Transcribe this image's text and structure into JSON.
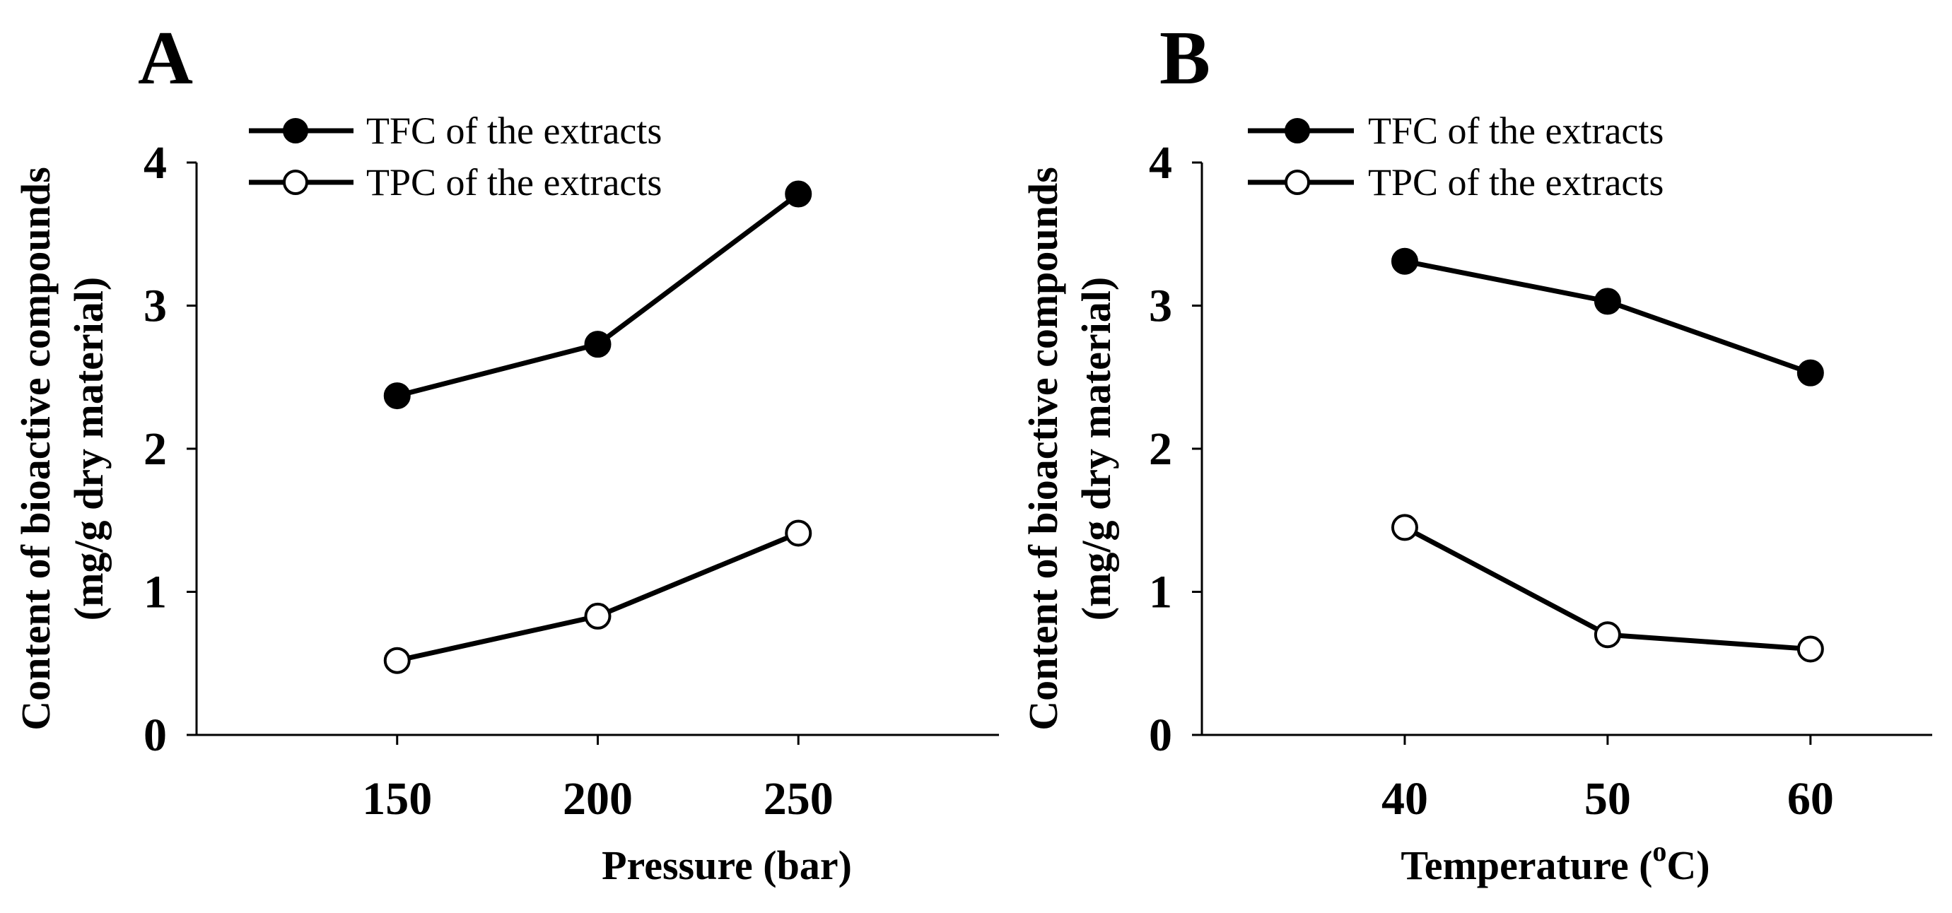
{
  "chart_data": [
    {
      "panel_label": "A",
      "type": "line",
      "xlabel": "Pressure (bar)",
      "ylabel_line1": "Content of bioactive compounds",
      "ylabel_line2": "(mg/g dry material)",
      "x": [
        150,
        200,
        250
      ],
      "xlim": [
        100,
        300
      ],
      "ylim": [
        0,
        4
      ],
      "xticks": [
        "150",
        "200",
        "250"
      ],
      "yticks": [
        "0",
        "1",
        "2",
        "3",
        "4"
      ],
      "legend_position": "top-left",
      "series": [
        {
          "name": "TFC of the extracts",
          "marker": "filled-circle",
          "values": [
            2.37,
            2.73,
            3.78
          ]
        },
        {
          "name": "TPC of the extracts",
          "marker": "open-circle",
          "values": [
            0.52,
            0.83,
            1.41
          ]
        }
      ]
    },
    {
      "panel_label": "B",
      "type": "line",
      "xlabel_main": "Temperature (",
      "xlabel_sup": "o",
      "xlabel_tail": "C)",
      "ylabel_line1": "Content of bioactive compounds",
      "ylabel_line2": "(mg/g dry material)",
      "x": [
        40,
        50,
        60
      ],
      "xlim": [
        30,
        66
      ],
      "ylim": [
        0,
        4
      ],
      "xticks": [
        "40",
        "50",
        "60"
      ],
      "yticks": [
        "0",
        "1",
        "2",
        "3",
        "4"
      ],
      "legend_position": "top-left",
      "series": [
        {
          "name": "TFC of the extracts",
          "marker": "filled-circle",
          "values": [
            3.31,
            3.03,
            2.53
          ]
        },
        {
          "name": "TPC of the extracts",
          "marker": "open-circle",
          "values": [
            1.45,
            0.7,
            0.6
          ]
        }
      ]
    }
  ]
}
